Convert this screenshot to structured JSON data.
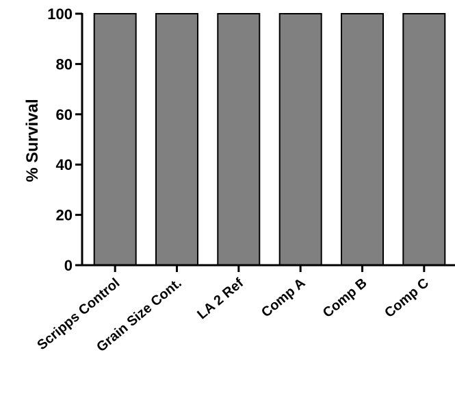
{
  "chart_data": {
    "type": "bar",
    "categories": [
      "Scripps Control",
      "Grain Size Cont.",
      "LA 2 Ref",
      "Comp A",
      "Comp B",
      "Comp C"
    ],
    "values": [
      100,
      100,
      100,
      100,
      100,
      100
    ],
    "ylabel": "% Survival",
    "ylim": [
      0,
      100
    ],
    "yticks": [
      0,
      20,
      40,
      60,
      80,
      100
    ],
    "grid": false,
    "legend": "none",
    "bar_color": "#808080",
    "bar_edge_color": "#000000"
  }
}
